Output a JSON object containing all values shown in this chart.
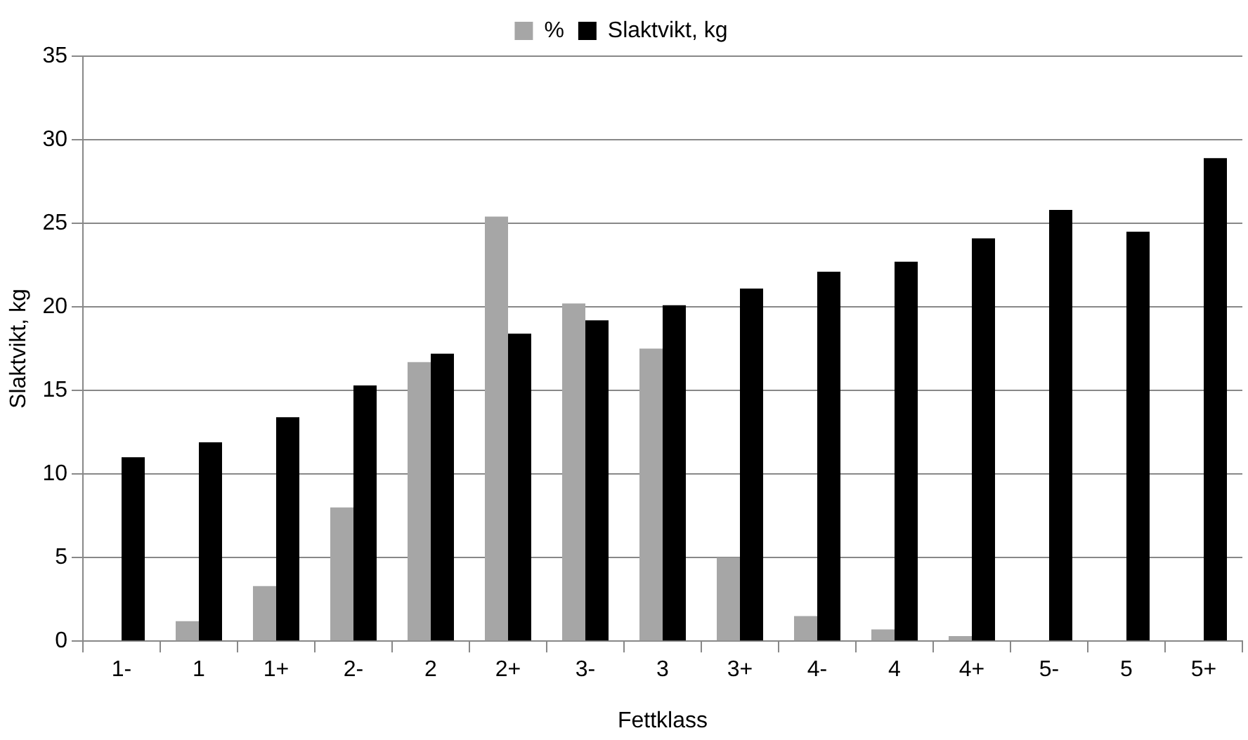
{
  "chart_data": {
    "type": "bar",
    "xlabel": "Fettklass",
    "ylabel": "Slaktvikt, kg",
    "categories": [
      "1-",
      "1",
      "1+",
      "2-",
      "2",
      "2+",
      "3-",
      "3",
      "3+",
      "4-",
      "4",
      "4+",
      "5-",
      "5",
      "5+"
    ],
    "series": [
      {
        "name": "%",
        "color": "#a6a6a6",
        "values": [
          null,
          1.2,
          3.3,
          8.0,
          16.7,
          25.4,
          20.2,
          17.5,
          5.0,
          1.5,
          0.7,
          0.3,
          null,
          null,
          0
        ]
      },
      {
        "name": "Slaktvikt, kg",
        "color": "#000000",
        "values": [
          11.0,
          11.9,
          13.4,
          15.3,
          17.2,
          18.4,
          19.2,
          20.1,
          21.1,
          22.1,
          22.7,
          24.1,
          25.8,
          24.5,
          28.9
        ]
      }
    ],
    "ylim": [
      0,
      35
    ],
    "yticks": [
      0,
      5,
      10,
      15,
      20,
      25,
      30,
      35
    ],
    "grid": "y",
    "legend": "top"
  }
}
